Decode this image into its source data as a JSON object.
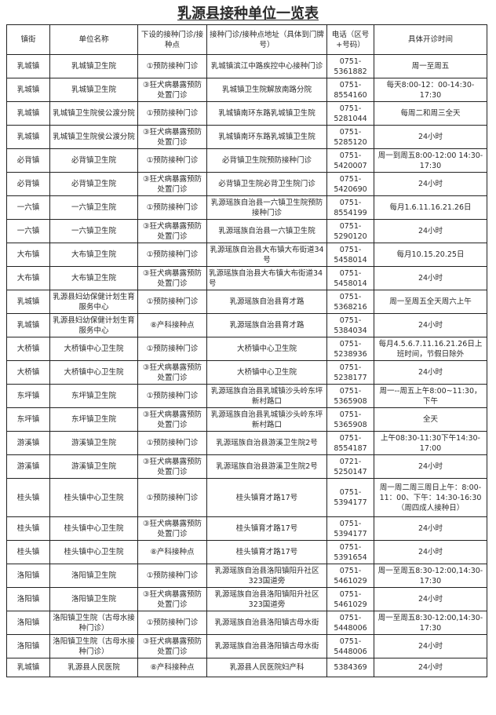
{
  "title": "乳源县接种单位一览表",
  "columns": [
    "镇街",
    "单位名称",
    "下设的接种门诊/接种点",
    "接种门诊/接种点地址（具体到门牌号）",
    "电话（区号+号码）",
    "具体开诊时间"
  ],
  "rows": [
    [
      "乳城镇",
      "乳城镇卫生院",
      "①预防接种门诊",
      "乳城镇滨江中路疾控中心接种门诊",
      "0751-5361882",
      "周一至周五"
    ],
    [
      "乳城镇",
      "乳城镇卫生院",
      "③狂犬病暴露预防处置门诊",
      "乳城镇卫生院解放南路分院",
      "0751-8554160",
      "每天8:00-12：00-14:30-17:30"
    ],
    [
      "乳城镇",
      "乳城镇卫生院侯公渡分院",
      "①预防接种门诊",
      "乳城镇南环东路乳城镇卫生院",
      "0751-5281044",
      "每周二和周三全天"
    ],
    [
      "乳城镇",
      "乳城镇卫生院侯公渡分院",
      "③狂犬病暴露预防处置门诊",
      "乳城镇南环东路乳城镇卫生院",
      "0751-5285120",
      "24小时"
    ],
    [
      "必背镇",
      "必背镇卫生院",
      "①预防接种门诊",
      "必背镇卫生院预防接种门诊",
      "0751-5420007",
      "周一到周五8:00-12:00 14:30-17:30"
    ],
    [
      "必背镇",
      "必背镇卫生院",
      "③狂犬病暴露预防处置门诊",
      "必背镇卫生院必背卫生院门诊",
      "0751-5420690",
      "24小时"
    ],
    [
      "一六镇",
      "一六镇卫生院",
      "①预防接种门诊",
      "乳源瑶族自治县一六镇卫生院预防接种门诊",
      "0751-8554199",
      "每月1.6.11.16.21.26日"
    ],
    [
      "一六镇",
      "一六镇卫生院",
      "③狂犬病暴露预防处置门诊",
      "乳源瑶族自治县一六镇卫生院",
      "0751-5290120",
      "24小时"
    ],
    [
      "大布镇",
      "大布镇卫生院",
      "①预防接种门诊",
      "乳源瑶族自治县大布镇大布街道34号",
      "0751-5458014",
      "每月10.15.20.25日"
    ],
    [
      "大布镇",
      "大布镇卫生院",
      "③狂犬病暴露预防处置门诊",
      "乳源瑶族自治县大布镇大布街道34号",
      "0751-5458014",
      "24小时"
    ],
    [
      "乳城镇",
      "乳源县妇幼保健计划生育服务中心",
      "①预防接种门诊",
      "乳源瑶族自治县育才路",
      "0751-5368216",
      "周一至周五全天周六上午"
    ],
    [
      "乳城镇",
      "乳源县妇幼保健计划生育服务中心",
      "⑧产科接种点",
      "乳源瑶族自治县育才路",
      "0751-5384034",
      "24小时"
    ],
    [
      "大桥镇",
      "大桥镇中心卫生院",
      "①预防接种门诊",
      "大桥镇中心卫生院",
      "0751-5238936",
      "每月4.5.6.7.11.16.21.26日上班时间，节假日除外"
    ],
    [
      "大桥镇",
      "大桥镇中心卫生院",
      "③狂犬病暴露预防处置门诊",
      "大桥镇中心卫生院",
      "0751-5238177",
      "24小时"
    ],
    [
      "东坪镇",
      "东坪镇卫生院",
      "①预防接种门诊",
      "乳源瑶族自治县乳城镇沙头岭东坪新村路口",
      "0751-5365908",
      "周一--周五上午8:00~11:30，下午"
    ],
    [
      "东坪镇",
      "东坪镇卫生院",
      "③狂犬病暴露预防处置门诊",
      "乳源瑶族自治县乳城镇沙头岭东坪新村路口",
      "0751-5365908",
      "全天"
    ],
    [
      "游溪镇",
      "游溪镇卫生院",
      "①预防接种门诊",
      "乳源瑶族自治县游溪卫生院2号",
      "0751-8554187",
      "上午08:30-11:30下午14:30-17:00"
    ],
    [
      "游溪镇",
      "游溪镇卫生院",
      "③狂犬病暴露预防处置门诊",
      "乳源瑶族自治县游溪卫生院2号",
      "0721-5250147",
      "24小时"
    ],
    [
      "桂头镇",
      "桂头镇中心卫生院",
      "①预防接种门诊",
      "桂头镇育才路17号",
      "0751-5394177",
      "周一周二周三周日上午：8:00-11：00、下午：14:30-16:30（周四成人接种日）"
    ],
    [
      "桂头镇",
      "桂头镇中心卫生院",
      "③狂犬病暴露预防处置门诊",
      "桂头镇育才路17号",
      "0751-5394177",
      "24小时"
    ],
    [
      "桂头镇",
      "桂头镇中心卫生院",
      "⑧产科接种点",
      "桂头镇育才路17号",
      "0751-5391654",
      "24小时"
    ],
    [
      "洛阳镇",
      "洛阳镇卫生院",
      "①预防接种门诊",
      "乳源瑶族自治县洛阳镇阳升社区323国道旁",
      "0751-5461029",
      "周一至周五8:30-12:00,14:30-17:30"
    ],
    [
      "洛阳镇",
      "洛阳镇卫生院",
      "③狂犬病暴露预防处置门诊",
      "乳源瑶族自治县洛阳镇阳升社区323国道旁",
      "0751-5461029",
      "24小时"
    ],
    [
      "洛阳镇",
      "洛阳镇卫生院（古母水接种门诊）",
      "①预防接种门诊",
      "乳源瑶族自治县洛阳镇古母水街",
      "0751-5448006",
      "周一至周五8:30-12:00,14:30-17:30"
    ],
    [
      "洛阳镇",
      "洛阳镇卫生院（古母水接种门诊）",
      "③狂犬病暴露预防处置门诊",
      "乳源瑶族自治县洛阳镇古母水街",
      "0751-5448006",
      "24小时"
    ],
    [
      "乳城镇",
      "乳源县人民医院",
      "⑧产科接种点",
      "乳源县人民医院妇产科",
      "5384369",
      "24小时"
    ]
  ]
}
